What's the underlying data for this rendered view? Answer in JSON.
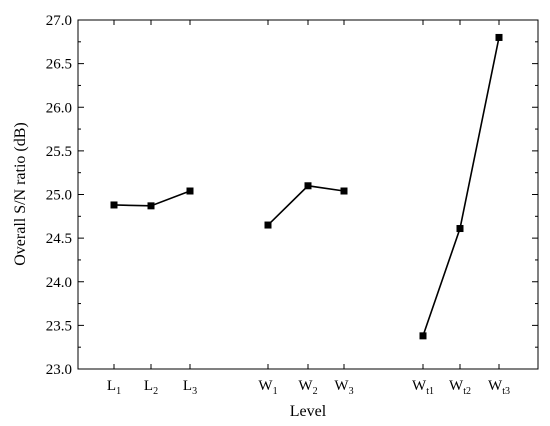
{
  "chart_data": {
    "type": "line",
    "xlabel": "Level",
    "ylabel": "Overall S/N ratio (dB)",
    "ylim": [
      23.0,
      27.0
    ],
    "yticks": [
      "23.0",
      "23.5",
      "24.0",
      "24.5",
      "25.0",
      "25.5",
      "26.0",
      "26.5",
      "27.0"
    ],
    "grid": false,
    "groups": [
      {
        "levels": [
          {
            "label": "L",
            "sub": "1",
            "y": 24.88
          },
          {
            "label": "L",
            "sub": "2",
            "y": 24.87
          },
          {
            "label": "L",
            "sub": "3",
            "y": 25.04
          }
        ]
      },
      {
        "levels": [
          {
            "label": "W",
            "sub": "1",
            "y": 24.65
          },
          {
            "label": "W",
            "sub": "2",
            "y": 25.1
          },
          {
            "label": "W",
            "sub": "3",
            "y": 25.04
          }
        ]
      },
      {
        "levels": [
          {
            "label": "W",
            "sub": "t1",
            "y": 23.38
          },
          {
            "label": "W",
            "sub": "t2",
            "y": 24.61
          },
          {
            "label": "W",
            "sub": "t3",
            "y": 26.8
          }
        ]
      }
    ],
    "colors": {
      "line": "#000000",
      "marker": "#000000",
      "axis": "#000000"
    }
  }
}
